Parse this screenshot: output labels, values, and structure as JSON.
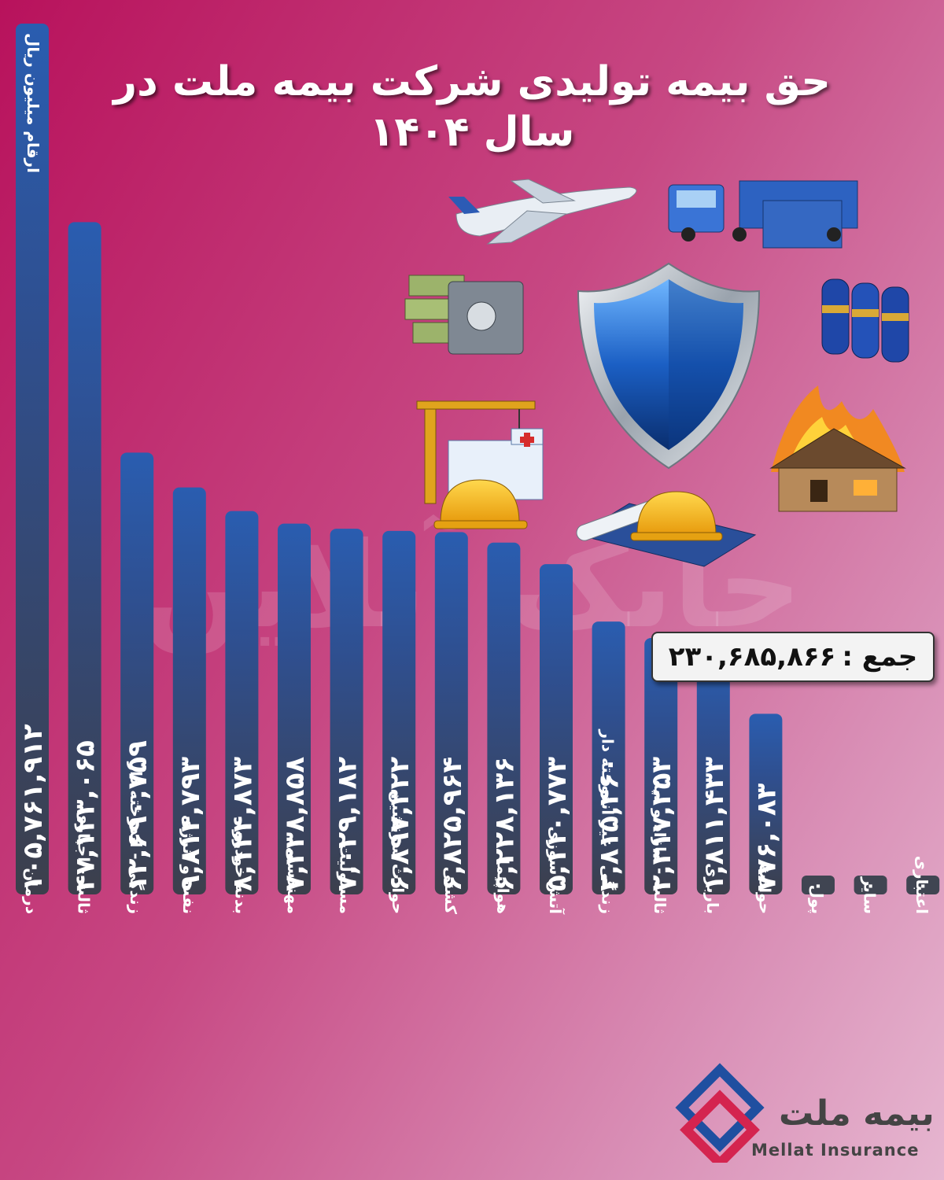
{
  "header": {
    "title": "حق بیمه تولیدی شرکت  بیمه ملت   در سال ۱۴۰۴",
    "unit": "ارقام میلیون ریال"
  },
  "total": {
    "label": "جمع :",
    "value": "۲۳۰,۶۸۵,۸۶۶"
  },
  "watermark": "چابک آنلاین",
  "brand": {
    "name_fa": "بیمه ملت",
    "name_en": "Mellat Insurance",
    "colors": {
      "blue": "#1f4fa0",
      "red": "#d4244f"
    }
  },
  "illustration_icons": [
    "airplane-icon",
    "truck-icon",
    "money-safe-icon",
    "shield-icon",
    "gas-cylinders-icon",
    "construction-crane-icon",
    "hospital-icon",
    "hard-hat-icon",
    "blueprint-icon",
    "burning-house-icon"
  ],
  "chart_data": {
    "type": "bar",
    "orientation": "vertical",
    "categories": [
      "درمان",
      "ثالث - اجباری",
      "زندگی - اندوخته دار",
      "نفت و انرژی",
      "بدنه خودرو",
      "مهندسی",
      "مسئولیت",
      "حوادث سرنشین",
      "کشتی",
      "هواپیما",
      "آتش سوزی",
      "زندگی - غیر اندوخته دار",
      "ثالث - مازاد و دیه",
      "باربری",
      "حوادث",
      "پول",
      "سایر",
      "اعتباری"
    ],
    "values": [
      105761912,
      47123065,
      12690759,
      9814793,
      8144873,
      7338858,
      7029182,
      6897322,
      6825964,
      6228136,
      5110773,
      2815460,
      2317253,
      1811433,
      776083,
      0,
      0,
      0
    ],
    "value_labels": [
      "۱۰۵,۷۶۱,۹۱۲",
      "۴۷,۱۲۳,۰۶۵",
      "۱۲,۶۹۰,۷۵۹",
      "۹,۸۱۴,۷۹۳",
      "۸,۱۴۴,۸۷۳",
      "۷,۳۳۸,۸۵۸",
      "۷,۰۲۹,۱۸۲",
      "۶,۸۹۷,۳۲۲",
      "۶,۸۲۵,۹۶۴",
      "۶,۲۲۸,۱۳۶",
      "۵,۱۱۰,۷۷۳",
      "۲,۸۱۵,۴۶۰",
      "۲,۳۱۷,۲۵۳",
      "۱,۸۱۱,۴۳۳",
      "۷۷۶,۰۸۳",
      "۰",
      "۰",
      "۰"
    ],
    "title": "حق بیمه تولیدی شرکت  بیمه ملت   در سال ۱۴۰۴",
    "ylabel": "ارقام میلیون ریال",
    "grid": false,
    "colors": {
      "bar_top": "#2a5db0",
      "bar_bottom": "#3c3f4c",
      "zero_box": "#404552"
    }
  }
}
